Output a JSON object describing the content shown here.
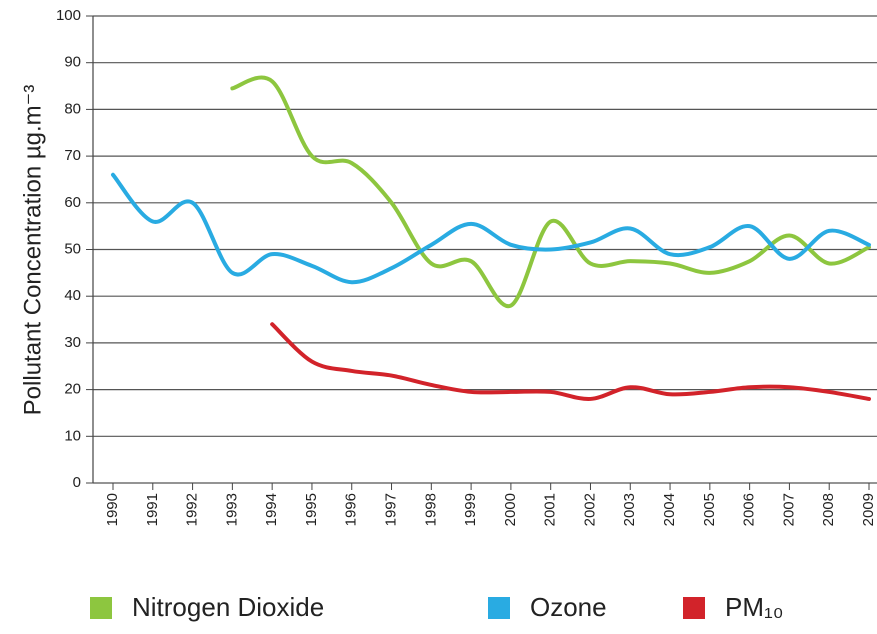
{
  "chart_data": {
    "type": "line",
    "y_label": "Pollutant Concentration µg.m⁻³",
    "categories": [
      "1990",
      "1991",
      "1992",
      "1993",
      "1994",
      "1995",
      "1996",
      "1997",
      "1998",
      "1999",
      "2000",
      "2001",
      "2002",
      "2003",
      "2004",
      "2005",
      "2006",
      "2007",
      "2008",
      "2009"
    ],
    "series": [
      {
        "name": "Nitrogen Dioxide",
        "color": "#8dc63f",
        "values": [
          null,
          null,
          null,
          84.5,
          86,
          70,
          68.5,
          60,
          47,
          47.5,
          38,
          56,
          47,
          47.5,
          47,
          45,
          47.5,
          53,
          47,
          50.5
        ]
      },
      {
        "name": "Ozone",
        "color": "#29abe2",
        "values": [
          66,
          56,
          60,
          45,
          49,
          46.5,
          43,
          46,
          51,
          55.5,
          51,
          50,
          51.5,
          54.5,
          49,
          50.5,
          55,
          48,
          54,
          51
        ]
      },
      {
        "name": "PM₁₀",
        "color": "#d2232a",
        "values": [
          null,
          null,
          null,
          null,
          34,
          26,
          24,
          23,
          21,
          19.5,
          19.5,
          19.5,
          18,
          20.5,
          19,
          19.5,
          20.5,
          20.5,
          19.5,
          18
        ]
      }
    ],
    "ylim": [
      0,
      100
    ],
    "yticks": [
      0,
      10,
      20,
      30,
      40,
      50,
      60,
      70,
      80,
      90,
      100
    ],
    "grid": true
  }
}
